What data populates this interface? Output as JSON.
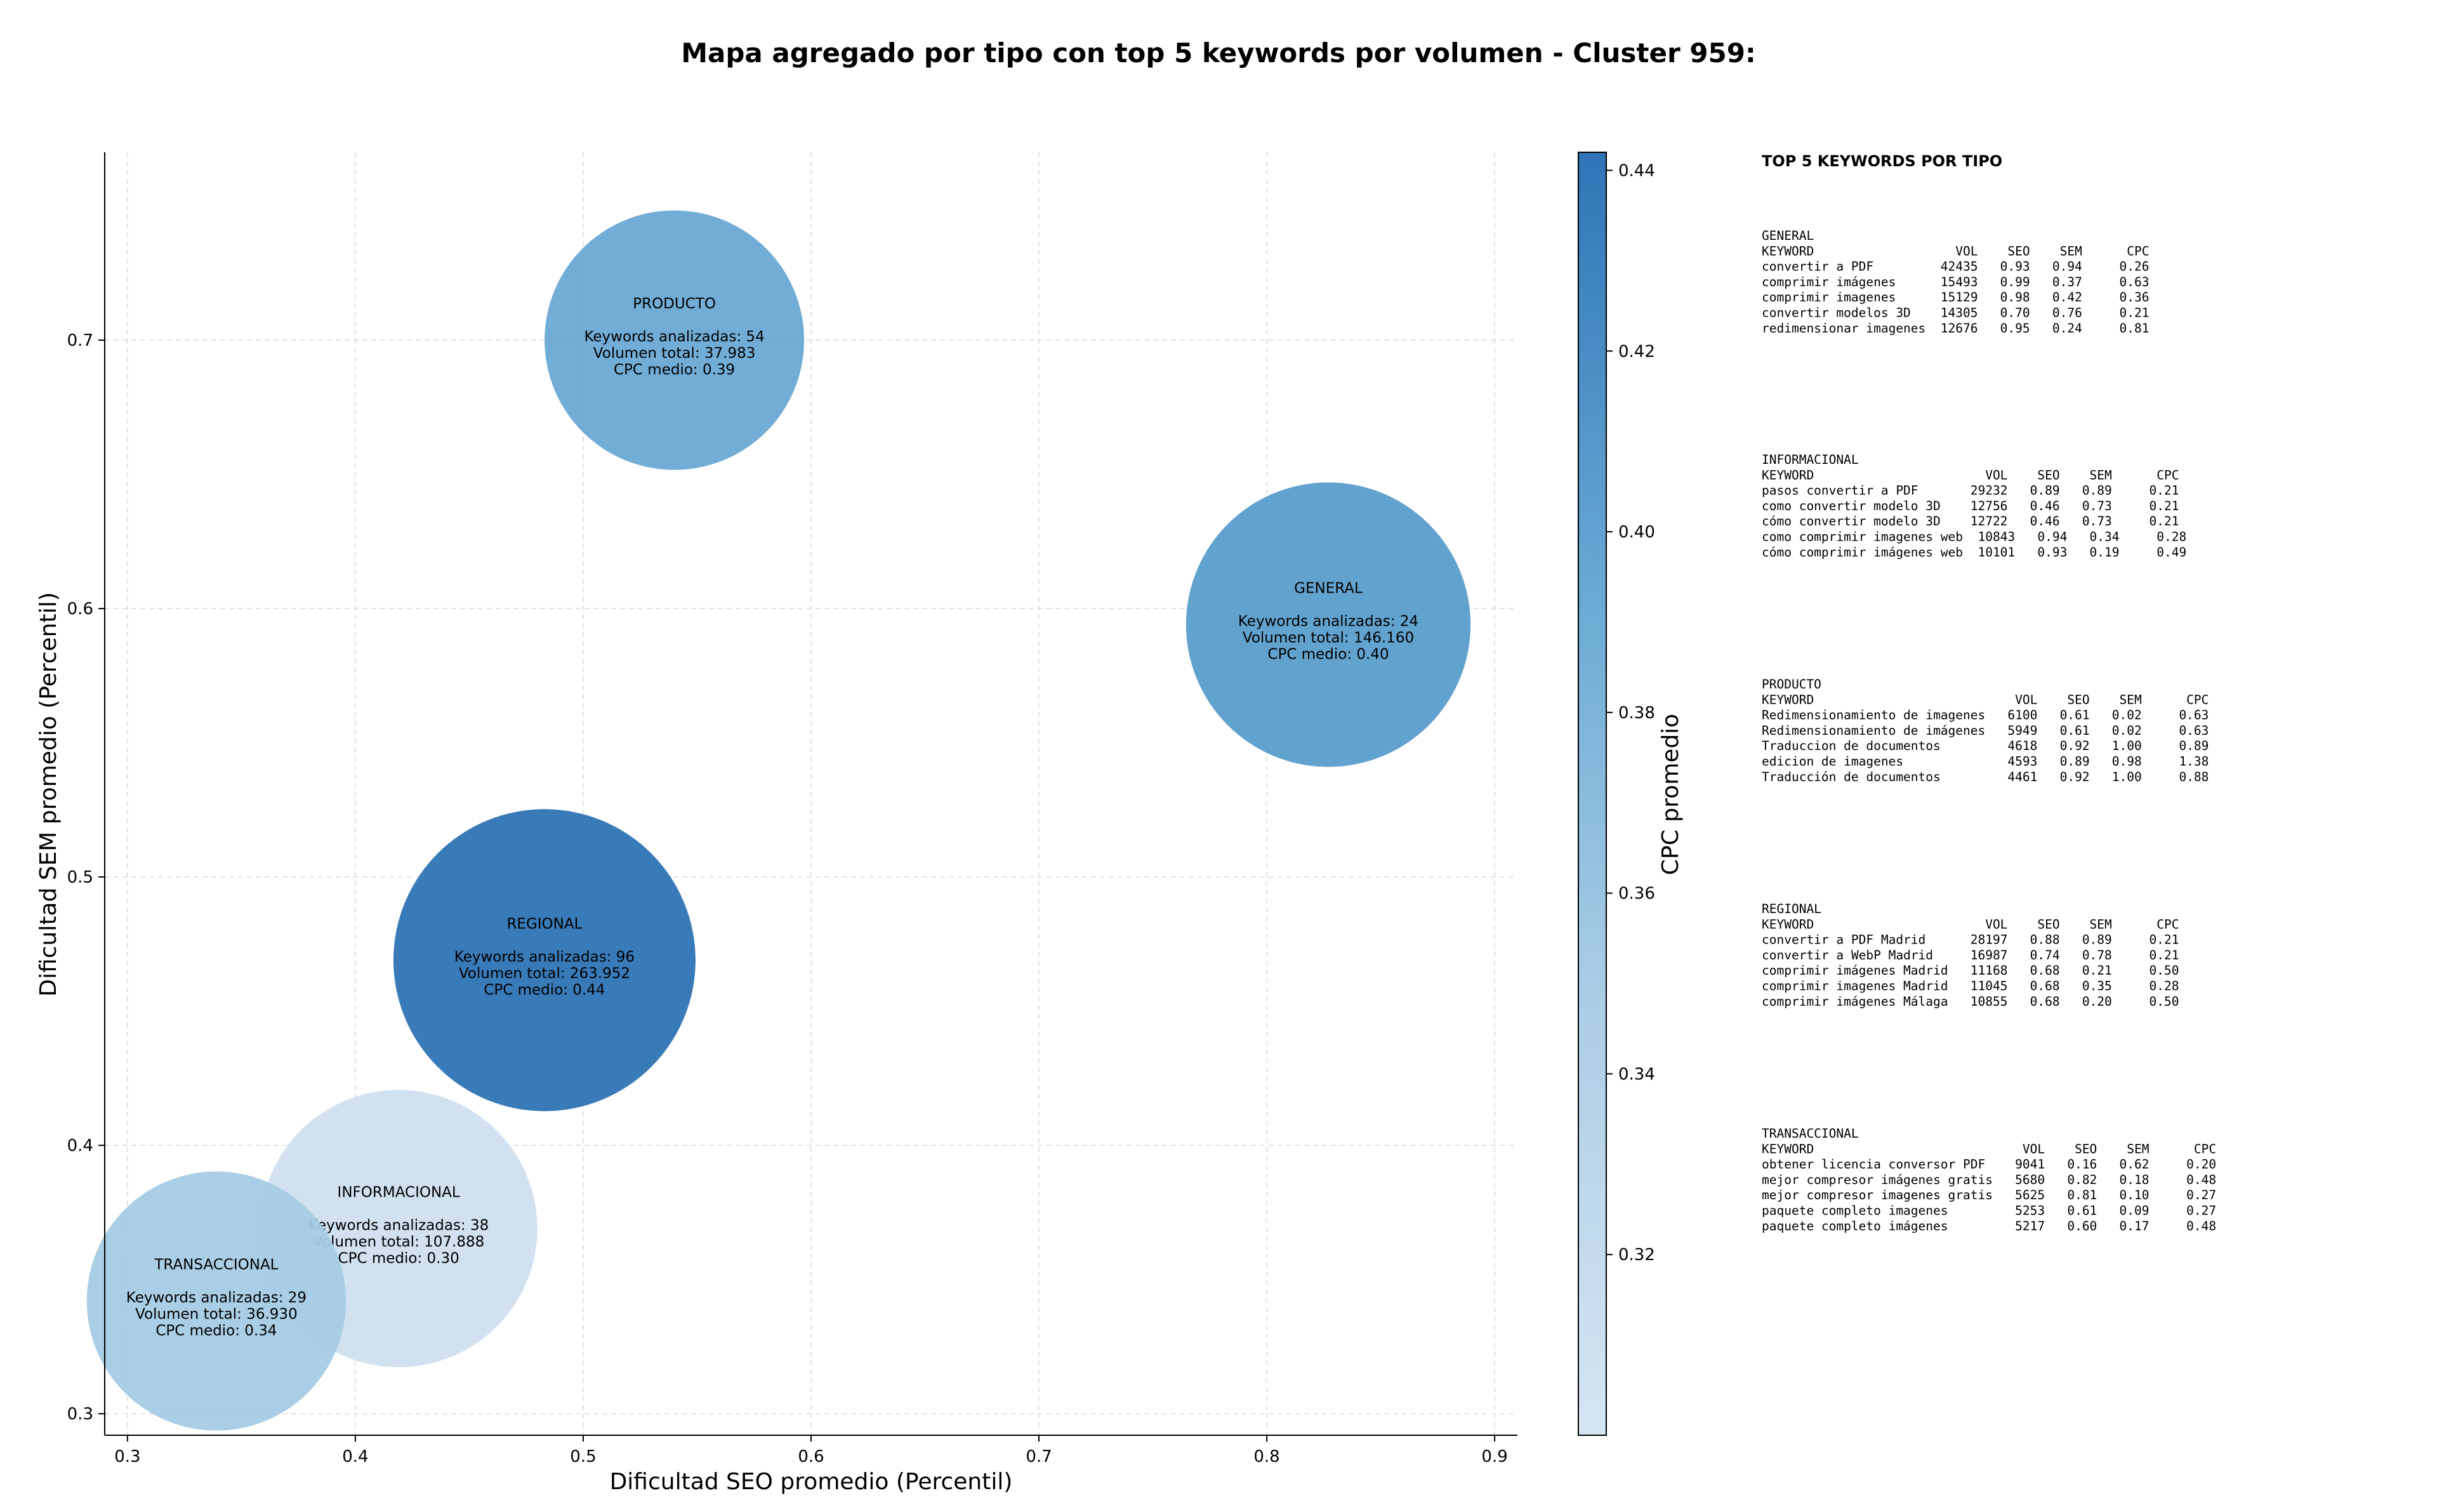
{
  "chart_data": {
    "type": "scatter",
    "title": "Mapa agregado por tipo con top 5 keywords por volumen - Cluster 959:",
    "xlabel": "Dificultad SEO promedio (Percentil)",
    "ylabel": "Dificultad SEM promedio (Percentil)",
    "xlim": [
      0.29,
      0.91
    ],
    "ylim": [
      0.292,
      0.77
    ],
    "xticks": [
      "0.3",
      "0.4",
      "0.5",
      "0.6",
      "0.7",
      "0.8",
      "0.9"
    ],
    "yticks": [
      "0.3",
      "0.4",
      "0.5",
      "0.6",
      "0.7"
    ],
    "grid": true,
    "colorbar": {
      "label": "CPC promedio",
      "range": [
        0.3,
        0.442
      ],
      "ticks": [
        "0.32",
        "0.34",
        "0.36",
        "0.38",
        "0.40",
        "0.42",
        "0.44"
      ],
      "color_low": "#cbdcee",
      "color_high": "#2f75b6"
    },
    "bubbles": [
      {
        "name": "PRODUCTO",
        "x": 0.54,
        "y": 0.7,
        "keywords": 54,
        "volume": 37983,
        "cpc": 0.39,
        "line1": "Keywords analizadas: 54",
        "line2": "Volumen total: 37.983",
        "line3": "CPC medio: 0.39",
        "color": "#69a9d4"
      },
      {
        "name": "GENERAL",
        "x": 0.827,
        "y": 0.594,
        "keywords": 24,
        "volume": 146160,
        "cpc": 0.4,
        "line1": "Keywords analizadas: 24",
        "line2": "Volumen total: 146.160",
        "line3": "CPC medio: 0.40",
        "color": "#5a9dcc"
      },
      {
        "name": "REGIONAL",
        "x": 0.483,
        "y": 0.469,
        "keywords": 96,
        "volume": 263952,
        "cpc": 0.44,
        "line1": "Keywords analizadas: 96",
        "line2": "Volumen total: 263.952",
        "line3": "CPC medio: 0.44",
        "color": "#2e73b4"
      },
      {
        "name": "INFORMACIONAL",
        "x": 0.419,
        "y": 0.369,
        "keywords": 38,
        "volume": 107888,
        "cpc": 0.3,
        "line1": "Keywords analizadas: 38",
        "line2": "Volumen total: 107.888",
        "line3": "CPC medio: 0.30",
        "color": "#cfdfef"
      },
      {
        "name": "TRANSACCIONAL",
        "x": 0.339,
        "y": 0.342,
        "keywords": 29,
        "volume": 36930,
        "cpc": 0.34,
        "line1": "Keywords analizadas: 29",
        "line2": "Volumen total: 36.930",
        "line3": "CPC medio: 0.34",
        "color": "#a5cbe4"
      }
    ],
    "side_panel": {
      "title": "TOP 5 KEYWORDS POR TIPO",
      "groups": [
        {
          "name": "GENERAL",
          "lines": [
            "KEYWORD                   VOL    SEO    SEM      CPC",
            "convertir a PDF         42435   0.93   0.94     0.26",
            "comprimir imágenes      15493   0.99   0.37     0.63",
            "comprimir imagenes      15129   0.98   0.42     0.36",
            "convertir modelos 3D    14305   0.70   0.76     0.21",
            "redimensionar imagenes  12676   0.95   0.24     0.81"
          ]
        },
        {
          "name": "INFORMACIONAL",
          "lines": [
            "KEYWORD                       VOL    SEO    SEM      CPC",
            "pasos convertir a PDF       29232   0.89   0.89     0.21",
            "como convertir modelo 3D    12756   0.46   0.73     0.21",
            "cómo convertir modelo 3D    12722   0.46   0.73     0.21",
            "como comprimir imagenes web  10843   0.94   0.34     0.28",
            "cómo comprimir imágenes web  10101   0.93   0.19     0.49"
          ]
        },
        {
          "name": "PRODUCTO",
          "lines": [
            "KEYWORD                           VOL    SEO    SEM      CPC",
            "Redimensionamiento de imagenes   6100   0.61   0.02     0.63",
            "Redimensionamiento de imágenes   5949   0.61   0.02     0.63",
            "Traduccion de documentos         4618   0.92   1.00     0.89",
            "edicion de imagenes              4593   0.89   0.98     1.38",
            "Traducción de documentos         4461   0.92   1.00     0.88"
          ]
        },
        {
          "name": "REGIONAL",
          "lines": [
            "KEYWORD                       VOL    SEO    SEM      CPC",
            "convertir a PDF Madrid      28197   0.88   0.89     0.21",
            "convertir a WebP Madrid     16987   0.74   0.78     0.21",
            "comprimir imágenes Madrid   11168   0.68   0.21     0.50",
            "comprimir imagenes Madrid   11045   0.68   0.35     0.28",
            "comprimir imágenes Málaga   10855   0.68   0.20     0.50"
          ]
        },
        {
          "name": "TRANSACCIONAL",
          "lines": [
            "KEYWORD                            VOL    SEO    SEM      CPC",
            "obtener licencia conversor PDF    9041   0.16   0.62     0.20",
            "mejor compresor imágenes gratis   5680   0.82   0.18     0.48",
            "mejor compresor imagenes gratis   5625   0.81   0.10     0.27",
            "paquete completo imagenes         5253   0.61   0.09     0.27",
            "paquete completo imágenes         5217   0.60   0.17     0.48"
          ]
        }
      ]
    }
  }
}
